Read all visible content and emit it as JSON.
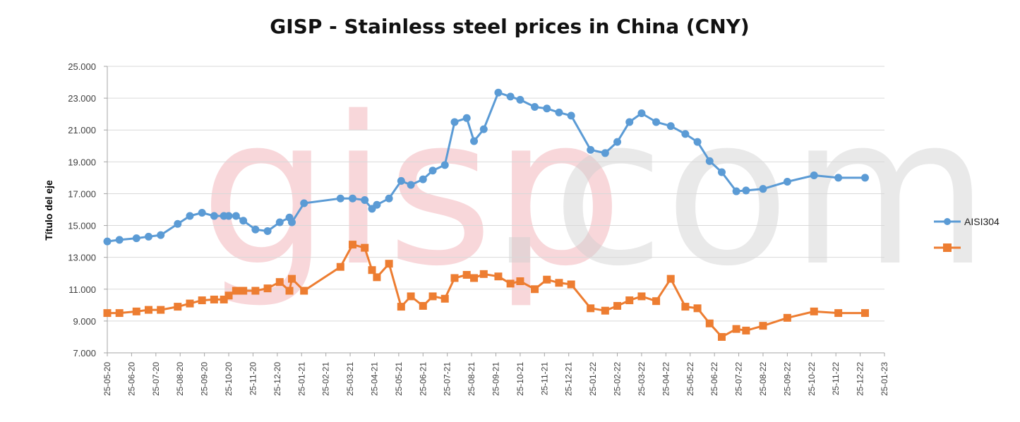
{
  "watermark": {
    "part1": "gisp",
    "part2": ".com"
  },
  "chart_data": {
    "type": "line",
    "title": "GISP - Stainless steel prices in China (CNY)",
    "xlabel": "",
    "ylabel": "Título del eje",
    "ylim": [
      7000,
      25000
    ],
    "yticks": [
      "7.000",
      "9.000",
      "11.000",
      "13.000",
      "15.000",
      "17.000",
      "19.000",
      "21.000",
      "23.000",
      "25.000"
    ],
    "ytick_values": [
      7000,
      9000,
      11000,
      13000,
      15000,
      17000,
      19000,
      21000,
      23000,
      25000
    ],
    "categories": [
      "25-05-20",
      "25-06-20",
      "25-07-20",
      "25-08-20",
      "25-09-20",
      "25-10-20",
      "25-11-20",
      "25-12-20",
      "25-01-21",
      "25-02-21",
      "25-03-21",
      "25-04-21",
      "25-05-21",
      "25-06-21",
      "25-07-21",
      "25-08-21",
      "25-09-21",
      "25-10-21",
      "25-11-21",
      "25-12-21",
      "25-01-22",
      "25-02-22",
      "25-03-22",
      "25-04-22",
      "25-05-22",
      "25-06-22",
      "25-07-22",
      "25-08-22",
      "25-09-22",
      "25-10-22",
      "25-11-22",
      "25-12-22",
      "25-01-23"
    ],
    "grid": true,
    "legend_position": "right",
    "colors": {
      "AISI304": "#5b9bd5",
      "series2": "#ed7d31",
      "grid": "#d9d9d9",
      "axis": "#a6a6a6"
    },
    "series": [
      {
        "name": "AISI304",
        "marker": "circle",
        "x": [
          0,
          0.5,
          1.2,
          1.7,
          2.2,
          2.9,
          3.4,
          3.9,
          4.4,
          4.8,
          5.0,
          5.3,
          5.6,
          6.1,
          6.6,
          7.1,
          7.5,
          7.6,
          8.1,
          9.6,
          10.1,
          10.6,
          10.9,
          11.1,
          11.6,
          12.1,
          12.5,
          13.0,
          13.4,
          13.9,
          14.3,
          14.8,
          15.1,
          15.5,
          16.1,
          16.6,
          17.0,
          17.6,
          18.1,
          18.6,
          19.1,
          19.9,
          20.5,
          21.0,
          21.5,
          22.0,
          22.6,
          23.2,
          23.8,
          24.3,
          24.8,
          25.3,
          25.9,
          26.3,
          27.0,
          28.0,
          29.1,
          30.1,
          31.2
        ],
        "y": [
          14000,
          14100,
          14200,
          14300,
          14400,
          15100,
          15600,
          15800,
          15600,
          15600,
          15600,
          15600,
          15300,
          14750,
          14650,
          15200,
          15500,
          15200,
          16400,
          16700,
          16700,
          16600,
          16050,
          16300,
          16700,
          17800,
          17550,
          17900,
          18450,
          18800,
          21500,
          21750,
          20300,
          21050,
          23350,
          23100,
          22900,
          22450,
          22350,
          22100,
          21900,
          19750,
          19550,
          20250,
          21500,
          22050,
          21500,
          21250,
          20750,
          20250,
          19050,
          18350,
          17150,
          17200,
          17300,
          17750,
          18150,
          18000,
          18000
        ]
      },
      {
        "name": "",
        "marker": "square",
        "x": [
          0,
          0.5,
          1.2,
          1.7,
          2.2,
          2.9,
          3.4,
          3.9,
          4.4,
          4.8,
          5.0,
          5.3,
          5.6,
          6.1,
          6.6,
          7.1,
          7.5,
          7.6,
          8.1,
          9.6,
          10.1,
          10.6,
          10.9,
          11.1,
          11.6,
          12.1,
          12.5,
          13.0,
          13.4,
          13.9,
          14.3,
          14.8,
          15.1,
          15.5,
          16.1,
          16.6,
          17.0,
          17.6,
          18.1,
          18.6,
          19.1,
          19.9,
          20.5,
          21.0,
          21.5,
          22.0,
          22.6,
          23.2,
          23.8,
          24.3,
          24.8,
          25.3,
          25.9,
          26.3,
          27.0,
          28.0,
          29.1,
          30.1,
          31.2
        ],
        "y": [
          9500,
          9500,
          9600,
          9700,
          9700,
          9900,
          10100,
          10300,
          10350,
          10350,
          10600,
          10900,
          10900,
          10900,
          11050,
          11450,
          10900,
          11650,
          10900,
          12400,
          13800,
          13600,
          12200,
          11750,
          12600,
          9900,
          10550,
          9950,
          10550,
          10400,
          11700,
          11900,
          11700,
          11950,
          11800,
          11350,
          11500,
          11000,
          11600,
          11400,
          11300,
          9800,
          9650,
          9950,
          10300,
          10550,
          10250,
          11650,
          9900,
          9800,
          8850,
          8000,
          8500,
          8400,
          8700,
          9200,
          9600,
          9500,
          9500
        ]
      }
    ]
  }
}
